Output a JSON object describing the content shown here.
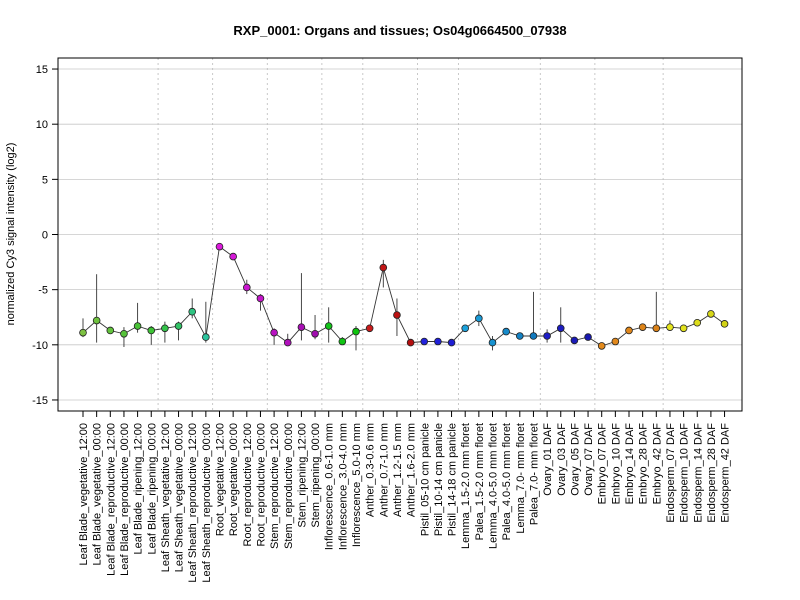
{
  "chart_data": {
    "type": "line",
    "title": "RXP_0001: Organs and tissues; Os04g0664500_07938",
    "xlabel": "",
    "ylabel": "normalized Cy3 signal intensity (log2)",
    "ylim": [
      -16,
      16
    ],
    "yticks": [
      -15,
      -10,
      -5,
      0,
      5,
      10,
      15
    ],
    "grid": true,
    "legend": "none",
    "categories": [
      "Leaf Blade_vegetative_12:00",
      "Leaf Blade_vegetative_00:00",
      "Leaf Blade_reproductive_12:00",
      "Leaf Blade_reproductive_00:00",
      "Leaf Blade_ripening_12:00",
      "Leaf Blade_ripening_00:00",
      "Leaf Sheath_vegetative_12:00",
      "Leaf Sheath_vegetative_00:00",
      "Leaf Sheath_reproductive_12:00",
      "Leaf Sheath_reproductive_00:00",
      "Root_vegetative_12:00",
      "Root_vegetative_00:00",
      "Root_reproductive_12:00",
      "Root_reproductive_00:00",
      "Stem_reproductive_12:00",
      "Stem_reproductive_00:00",
      "Stem_ripening_12:00",
      "Stem_ripening_00:00",
      "Inflorescence_0.6-1.0 mm",
      "Inflorescence_3.0-4.0 mm",
      "Inflorescence_5.0-10 mm",
      "Anther_0.3-0.6 mm",
      "Anther_0.7-1.0 mm",
      "Anther_1.2-1.5 mm",
      "Anther_1.6-2.0 mm",
      "Pistil_05-10 cm panicle",
      "Pistil_10-14 cm panicle",
      "Pistil_14-18 cm panicle",
      "Lemma_1.5-2.0 mm floret",
      "Palea_1.5-2.0 mm floret",
      "Lemma_4.0-5.0 mm floret",
      "Palea_4.0-5.0 mm floret",
      "Lemma_7.0- mm floret",
      "Palea_7.0- mm floret",
      "Ovary_01 DAF",
      "Ovary_03 DAF",
      "Ovary_05 DAF",
      "Ovary_07 DAF",
      "Embryo_07 DAF",
      "Embryo_10 DAF",
      "Embryo_14 DAF",
      "Embryo_28 DAF",
      "Embryo_42 DAF",
      "Endosperm_07 DAF",
      "Endosperm_10 DAF",
      "Endosperm_14 DAF",
      "Endosperm_28 DAF",
      "Endosperm_42 DAF"
    ],
    "values": [
      -8.9,
      -7.8,
      -8.7,
      -9.0,
      -8.3,
      -8.7,
      -8.5,
      -8.3,
      -7.0,
      -9.3,
      -1.1,
      -2.0,
      -4.8,
      -5.8,
      -8.9,
      -9.8,
      -8.4,
      -9.0,
      -8.3,
      -9.7,
      -8.8,
      -8.5,
      -3.0,
      -7.3,
      -9.8,
      -9.7,
      -9.7,
      -9.8,
      -8.5,
      -7.6,
      -9.8,
      -8.8,
      -9.2,
      -9.2,
      -9.2,
      -8.5,
      -9.6,
      -9.3,
      -10.1,
      -9.7,
      -8.7,
      -8.4,
      -8.5,
      -8.4,
      -8.5,
      -8.0,
      -7.2,
      -8.1
    ],
    "error_low": [
      -9.3,
      -9.8,
      -9.0,
      -10.2,
      -8.9,
      -10.0,
      -9.8,
      -9.6,
      -7.6,
      -9.8,
      -1.3,
      -2.2,
      -5.4,
      -6.9,
      -10.0,
      -10.0,
      -9.6,
      -9.5,
      -9.8,
      -9.8,
      -10.5,
      -8.6,
      -4.8,
      -9.2,
      -9.9,
      -9.8,
      -9.8,
      -10.0,
      -8.7,
      -8.3,
      -10.5,
      -9.0,
      -9.5,
      -9.4,
      -9.8,
      -9.8,
      -9.8,
      -9.5,
      -10.2,
      -9.8,
      -8.8,
      -8.5,
      -8.7,
      -8.7,
      -8.6,
      -8.2,
      -7.3,
      -8.2
    ],
    "error_high": [
      -7.6,
      -3.6,
      -8.4,
      -8.4,
      -6.2,
      -8.3,
      -7.9,
      -7.9,
      -5.8,
      -6.1,
      -0.9,
      -1.8,
      -4.1,
      -5.4,
      -8.5,
      -9.0,
      -3.5,
      -7.3,
      -6.6,
      -9.3,
      -8.3,
      -8.3,
      -2.3,
      -5.8,
      -9.6,
      -9.6,
      -9.6,
      -9.6,
      -8.3,
      -6.9,
      -9.2,
      -8.6,
      -8.9,
      -5.2,
      -8.6,
      -6.6,
      -9.4,
      -9.0,
      -9.9,
      -9.5,
      -8.5,
      -8.3,
      -5.2,
      -7.8,
      -8.3,
      -7.8,
      -7.0,
      -7.8
    ],
    "point_colors": [
      "#7dc142",
      "#6fc23f",
      "#62c23c",
      "#56c23a",
      "#49c237",
      "#3dc335",
      "#34c34a",
      "#31c366",
      "#2fc482",
      "#2cc49d",
      "#dc1bdc",
      "#d419d6",
      "#cb17d0",
      "#c315c9",
      "#b913c2",
      "#b011bb",
      "#a80fb5",
      "#a00dae",
      "#12c41a",
      "#10c414",
      "#0ec30e",
      "#c91b1b",
      "#c21616",
      "#bb1212",
      "#b40e0e",
      "#2222dd",
      "#2020d8",
      "#1e1ed3",
      "#1ca2dc",
      "#1a9ad6",
      "#1892d0",
      "#168aca",
      "#1482c4",
      "#127abe",
      "#1e1ec8",
      "#1c1cc0",
      "#1a1ab8",
      "#1818b0",
      "#e38a1c",
      "#e1881b",
      "#df861a",
      "#dd8419",
      "#db8218",
      "#e6e61e",
      "#e1e11c",
      "#dcdc1a",
      "#d7d718",
      "#d2d216"
    ],
    "group_separators_after": [
      5,
      9,
      13,
      17,
      20,
      24,
      27,
      33,
      37,
      42
    ]
  }
}
